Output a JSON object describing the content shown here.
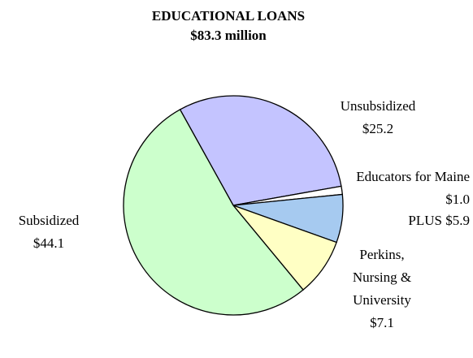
{
  "chart_data": {
    "type": "pie",
    "title": "EDUCATIONAL LOANS",
    "subtitle": "$83.3 million",
    "categories": [
      "Unsubsidized",
      "Educators for Maine",
      "PLUS",
      "Perkins, Nursing & University",
      "Subsidized"
    ],
    "values": [
      25.2,
      1.0,
      5.9,
      7.1,
      44.1
    ],
    "value_labels": [
      "$25.2",
      "$1.0",
      "$5.9",
      "$7.1",
      "$44.1"
    ],
    "colors": [
      "#c4c4ff",
      "#ffffff",
      "#a6caf0",
      "#ffffc4",
      "#ccffcc"
    ]
  }
}
